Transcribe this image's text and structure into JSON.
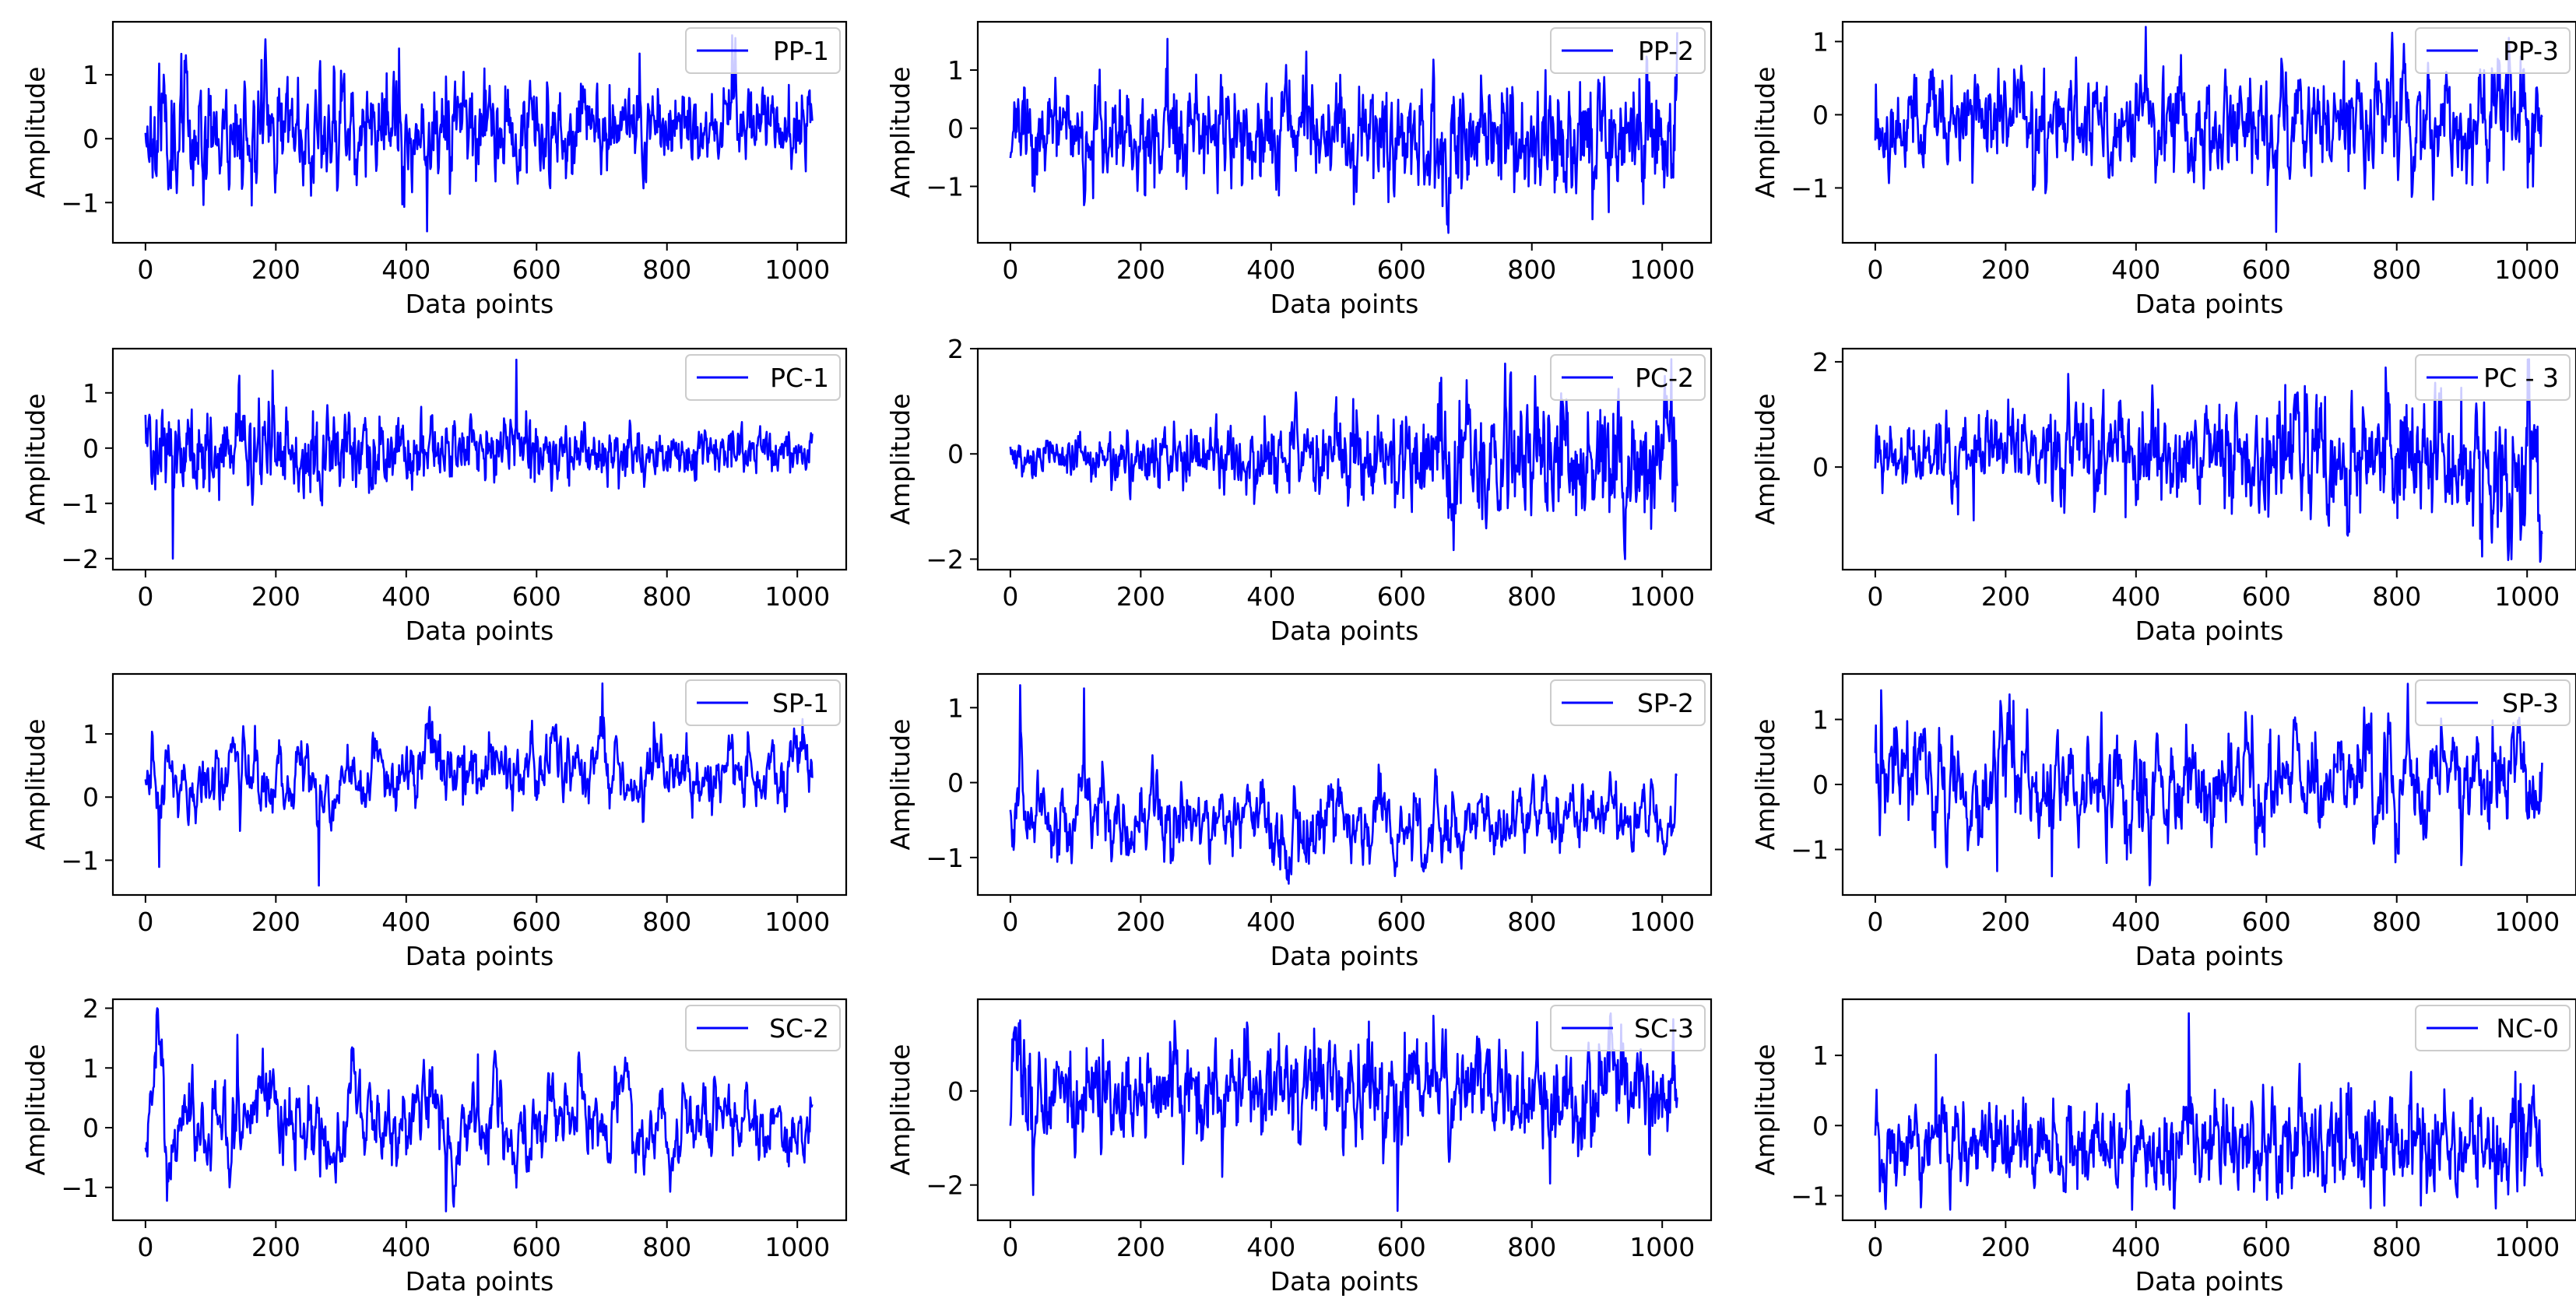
{
  "figure": {
    "line_color": "#0000ff",
    "legend_edge_color": "#cccccc"
  },
  "chart_data": [
    {
      "type": "line",
      "series": [
        {
          "name": "PP-1",
          "n_points": 1024,
          "seed": 11,
          "ar": 0.55,
          "envelope": 1.0,
          "trend": -0.25,
          "y_min": -1.45,
          "y_max": 1.62
        }
      ],
      "xlabel": "Data points",
      "ylabel": "Amplitude",
      "xlim": [
        -50,
        1075
      ],
      "ylim": [
        -1.63,
        1.83
      ],
      "xticks": [
        0,
        200,
        400,
        600,
        800,
        1000
      ],
      "yticks": [
        -1,
        0,
        1
      ],
      "legend": "upper right"
    },
    {
      "type": "line",
      "series": [
        {
          "name": "PP-2",
          "n_points": 1024,
          "seed": 23,
          "ar": 0.5,
          "envelope": 1.0,
          "trend": 0.15,
          "y_min": -1.8,
          "y_max": 1.65
        }
      ],
      "xlabel": "Data points",
      "ylabel": "Amplitude",
      "xlim": [
        -50,
        1075
      ],
      "ylim": [
        -1.97,
        1.83
      ],
      "xticks": [
        0,
        200,
        400,
        600,
        800,
        1000
      ],
      "yticks": [
        -1,
        0,
        1
      ],
      "legend": "upper right"
    },
    {
      "type": "line",
      "series": [
        {
          "name": "PP-3",
          "n_points": 1024,
          "seed": 37,
          "ar": 0.6,
          "envelope": 1.0,
          "trend": 0.1,
          "y_min": -1.6,
          "y_max": 1.2
        }
      ],
      "xlabel": "Data points",
      "ylabel": "Amplitude",
      "xlim": [
        -50,
        1075
      ],
      "ylim": [
        -1.75,
        1.27
      ],
      "xticks": [
        0,
        200,
        400,
        600,
        800,
        1000
      ],
      "yticks": [
        -1,
        0,
        1
      ],
      "legend": "upper right"
    },
    {
      "type": "line",
      "series": [
        {
          "name": "PC-1",
          "n_points": 1024,
          "seed": 41,
          "ar": 0.5,
          "envelope": 1.0,
          "trend": -0.45,
          "y_min": -2.0,
          "y_max": 1.6
        }
      ],
      "xlabel": "Data points",
      "ylabel": "Amplitude",
      "xlim": [
        -50,
        1075
      ],
      "ylim": [
        -2.2,
        1.8
      ],
      "xticks": [
        0,
        200,
        400,
        600,
        800,
        1000
      ],
      "yticks": [
        -2,
        -1,
        0,
        1
      ],
      "legend": "upper right"
    },
    {
      "type": "line",
      "series": [
        {
          "name": "PC-2",
          "n_points": 1024,
          "seed": 53,
          "ar": 0.5,
          "envelope": 1.0,
          "trend": 0.6,
          "y_min": -2.0,
          "y_max": 1.8
        }
      ],
      "xlabel": "Data points",
      "ylabel": "Amplitude",
      "xlim": [
        -50,
        1075
      ],
      "ylim": [
        -2.2,
        2.0
      ],
      "xticks": [
        0,
        200,
        400,
        600,
        800,
        1000
      ],
      "yticks": [
        -2,
        0,
        2
      ],
      "legend": "upper right"
    },
    {
      "type": "line",
      "series": [
        {
          "name": "PC - 3",
          "n_points": 1024,
          "seed": 67,
          "ar": 0.5,
          "envelope": 1.0,
          "trend": 0.45,
          "y_min": -1.8,
          "y_max": 2.05
        }
      ],
      "xlabel": "Data points",
      "ylabel": "Amplitude",
      "xlim": [
        -50,
        1075
      ],
      "ylim": [
        -1.95,
        2.25
      ],
      "xticks": [
        0,
        200,
        400,
        600,
        800,
        1000
      ],
      "yticks": [
        0,
        2
      ],
      "legend": "upper right"
    },
    {
      "type": "line",
      "series": [
        {
          "name": "SP-1",
          "n_points": 1024,
          "seed": 71,
          "ar": 0.8,
          "envelope": 1.0,
          "trend": 0.0,
          "y_min": -1.4,
          "y_max": 1.8
        }
      ],
      "xlabel": "Data points",
      "ylabel": "Amplitude",
      "xlim": [
        -50,
        1075
      ],
      "ylim": [
        -1.55,
        1.95
      ],
      "xticks": [
        0,
        200,
        400,
        600,
        800,
        1000
      ],
      "yticks": [
        -1,
        0,
        1
      ],
      "legend": "upper right"
    },
    {
      "type": "line",
      "series": [
        {
          "name": "SP-2",
          "n_points": 1024,
          "seed": 83,
          "ar": 0.75,
          "envelope": 1.0,
          "trend": -0.1,
          "y_min": -1.35,
          "y_max": 1.3
        }
      ],
      "xlabel": "Data points",
      "ylabel": "Amplitude",
      "xlim": [
        -50,
        1075
      ],
      "ylim": [
        -1.5,
        1.45
      ],
      "xticks": [
        0,
        200,
        400,
        600,
        800,
        1000
      ],
      "yticks": [
        -1,
        0,
        1
      ],
      "legend": "upper right"
    },
    {
      "type": "line",
      "series": [
        {
          "name": "SP-3",
          "n_points": 1024,
          "seed": 97,
          "ar": 0.75,
          "envelope": 1.0,
          "trend": -0.1,
          "y_min": -1.55,
          "y_max": 1.55
        }
      ],
      "xlabel": "Data points",
      "ylabel": "Amplitude",
      "xlim": [
        -50,
        1075
      ],
      "ylim": [
        -1.7,
        1.7
      ],
      "xticks": [
        0,
        200,
        400,
        600,
        800,
        1000
      ],
      "yticks": [
        -1,
        0,
        1
      ],
      "legend": "upper right"
    },
    {
      "type": "line",
      "series": [
        {
          "name": "SC-2",
          "n_points": 1024,
          "seed": 101,
          "ar": 0.85,
          "envelope": 1.0,
          "trend": -0.15,
          "y_min": -1.4,
          "y_max": 2.0
        }
      ],
      "xlabel": "Data points",
      "ylabel": "Amplitude",
      "xlim": [
        -50,
        1075
      ],
      "ylim": [
        -1.55,
        2.15
      ],
      "xticks": [
        0,
        200,
        400,
        600,
        800,
        1000
      ],
      "yticks": [
        -1,
        0,
        1,
        2
      ],
      "legend": "upper right"
    },
    {
      "type": "line",
      "series": [
        {
          "name": "SC-3",
          "n_points": 1024,
          "seed": 113,
          "ar": 0.6,
          "envelope": 1.0,
          "trend": 0.0,
          "y_min": -2.55,
          "y_max": 1.65
        }
      ],
      "xlabel": "Data points",
      "ylabel": "Amplitude",
      "xlim": [
        -50,
        1075
      ],
      "ylim": [
        -2.75,
        1.95
      ],
      "xticks": [
        0,
        200,
        400,
        600,
        800,
        1000
      ],
      "yticks": [
        -2,
        0
      ],
      "legend": "upper right"
    },
    {
      "type": "line",
      "series": [
        {
          "name": "NC-0",
          "n_points": 1024,
          "seed": 127,
          "ar": 0.5,
          "envelope": 1.0,
          "trend": 0.1,
          "y_min": -1.2,
          "y_max": 1.6
        }
      ],
      "xlabel": "Data points",
      "ylabel": "Amplitude",
      "xlim": [
        -50,
        1075
      ],
      "ylim": [
        -1.35,
        1.8
      ],
      "xticks": [
        0,
        200,
        400,
        600,
        800,
        1000
      ],
      "yticks": [
        -1,
        0,
        1
      ],
      "legend": "upper right"
    }
  ]
}
